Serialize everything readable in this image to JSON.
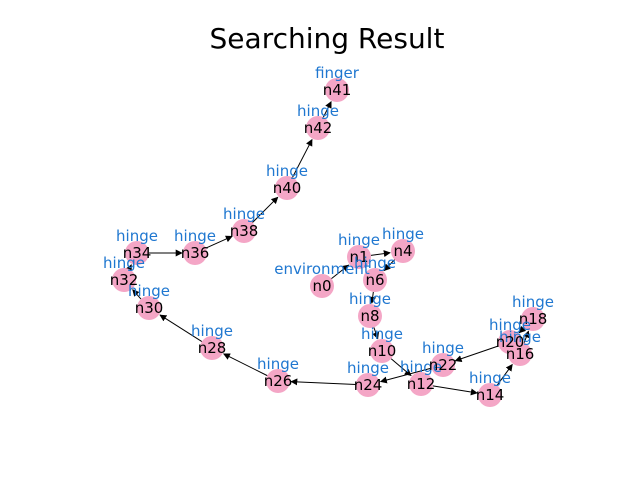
{
  "title": "Searching Result",
  "colors": {
    "node_fill": "#f4a6c6",
    "type_label": "#1f77d0",
    "edge": "#000000",
    "background": "#ffffff"
  },
  "nodes": [
    {
      "id": "n0",
      "type": "environment"
    },
    {
      "id": "n1",
      "type": "hinge"
    },
    {
      "id": "n4",
      "type": "hinge"
    },
    {
      "id": "n6",
      "type": "hinge"
    },
    {
      "id": "n8",
      "type": "hinge"
    },
    {
      "id": "n10",
      "type": "hinge"
    },
    {
      "id": "n12",
      "type": "hinge"
    },
    {
      "id": "n14",
      "type": "hinge"
    },
    {
      "id": "n16",
      "type": "hinge"
    },
    {
      "id": "n18",
      "type": "hinge"
    },
    {
      "id": "n20",
      "type": "hinge"
    },
    {
      "id": "n22",
      "type": "hinge"
    },
    {
      "id": "n24",
      "type": "hinge"
    },
    {
      "id": "n26",
      "type": "hinge"
    },
    {
      "id": "n28",
      "type": "hinge"
    },
    {
      "id": "n30",
      "type": "hinge"
    },
    {
      "id": "n32",
      "type": "hinge"
    },
    {
      "id": "n34",
      "type": "hinge"
    },
    {
      "id": "n36",
      "type": "hinge"
    },
    {
      "id": "n38",
      "type": "hinge"
    },
    {
      "id": "n40",
      "type": "hinge"
    },
    {
      "id": "n42",
      "type": "hinge"
    },
    {
      "id": "n41",
      "type": "finger"
    }
  ],
  "edges": [
    [
      "n0",
      "n1"
    ],
    [
      "n1",
      "n4"
    ],
    [
      "n4",
      "n6"
    ],
    [
      "n6",
      "n8"
    ],
    [
      "n8",
      "n10"
    ],
    [
      "n10",
      "n12"
    ],
    [
      "n12",
      "n14"
    ],
    [
      "n14",
      "n16"
    ],
    [
      "n16",
      "n18"
    ],
    [
      "n18",
      "n20"
    ],
    [
      "n20",
      "n22"
    ],
    [
      "n22",
      "n24"
    ],
    [
      "n24",
      "n26"
    ],
    [
      "n26",
      "n28"
    ],
    [
      "n28",
      "n30"
    ],
    [
      "n30",
      "n32"
    ],
    [
      "n32",
      "n34"
    ],
    [
      "n34",
      "n36"
    ],
    [
      "n36",
      "n38"
    ],
    [
      "n38",
      "n40"
    ],
    [
      "n40",
      "n42"
    ],
    [
      "n42",
      "n41"
    ]
  ]
}
